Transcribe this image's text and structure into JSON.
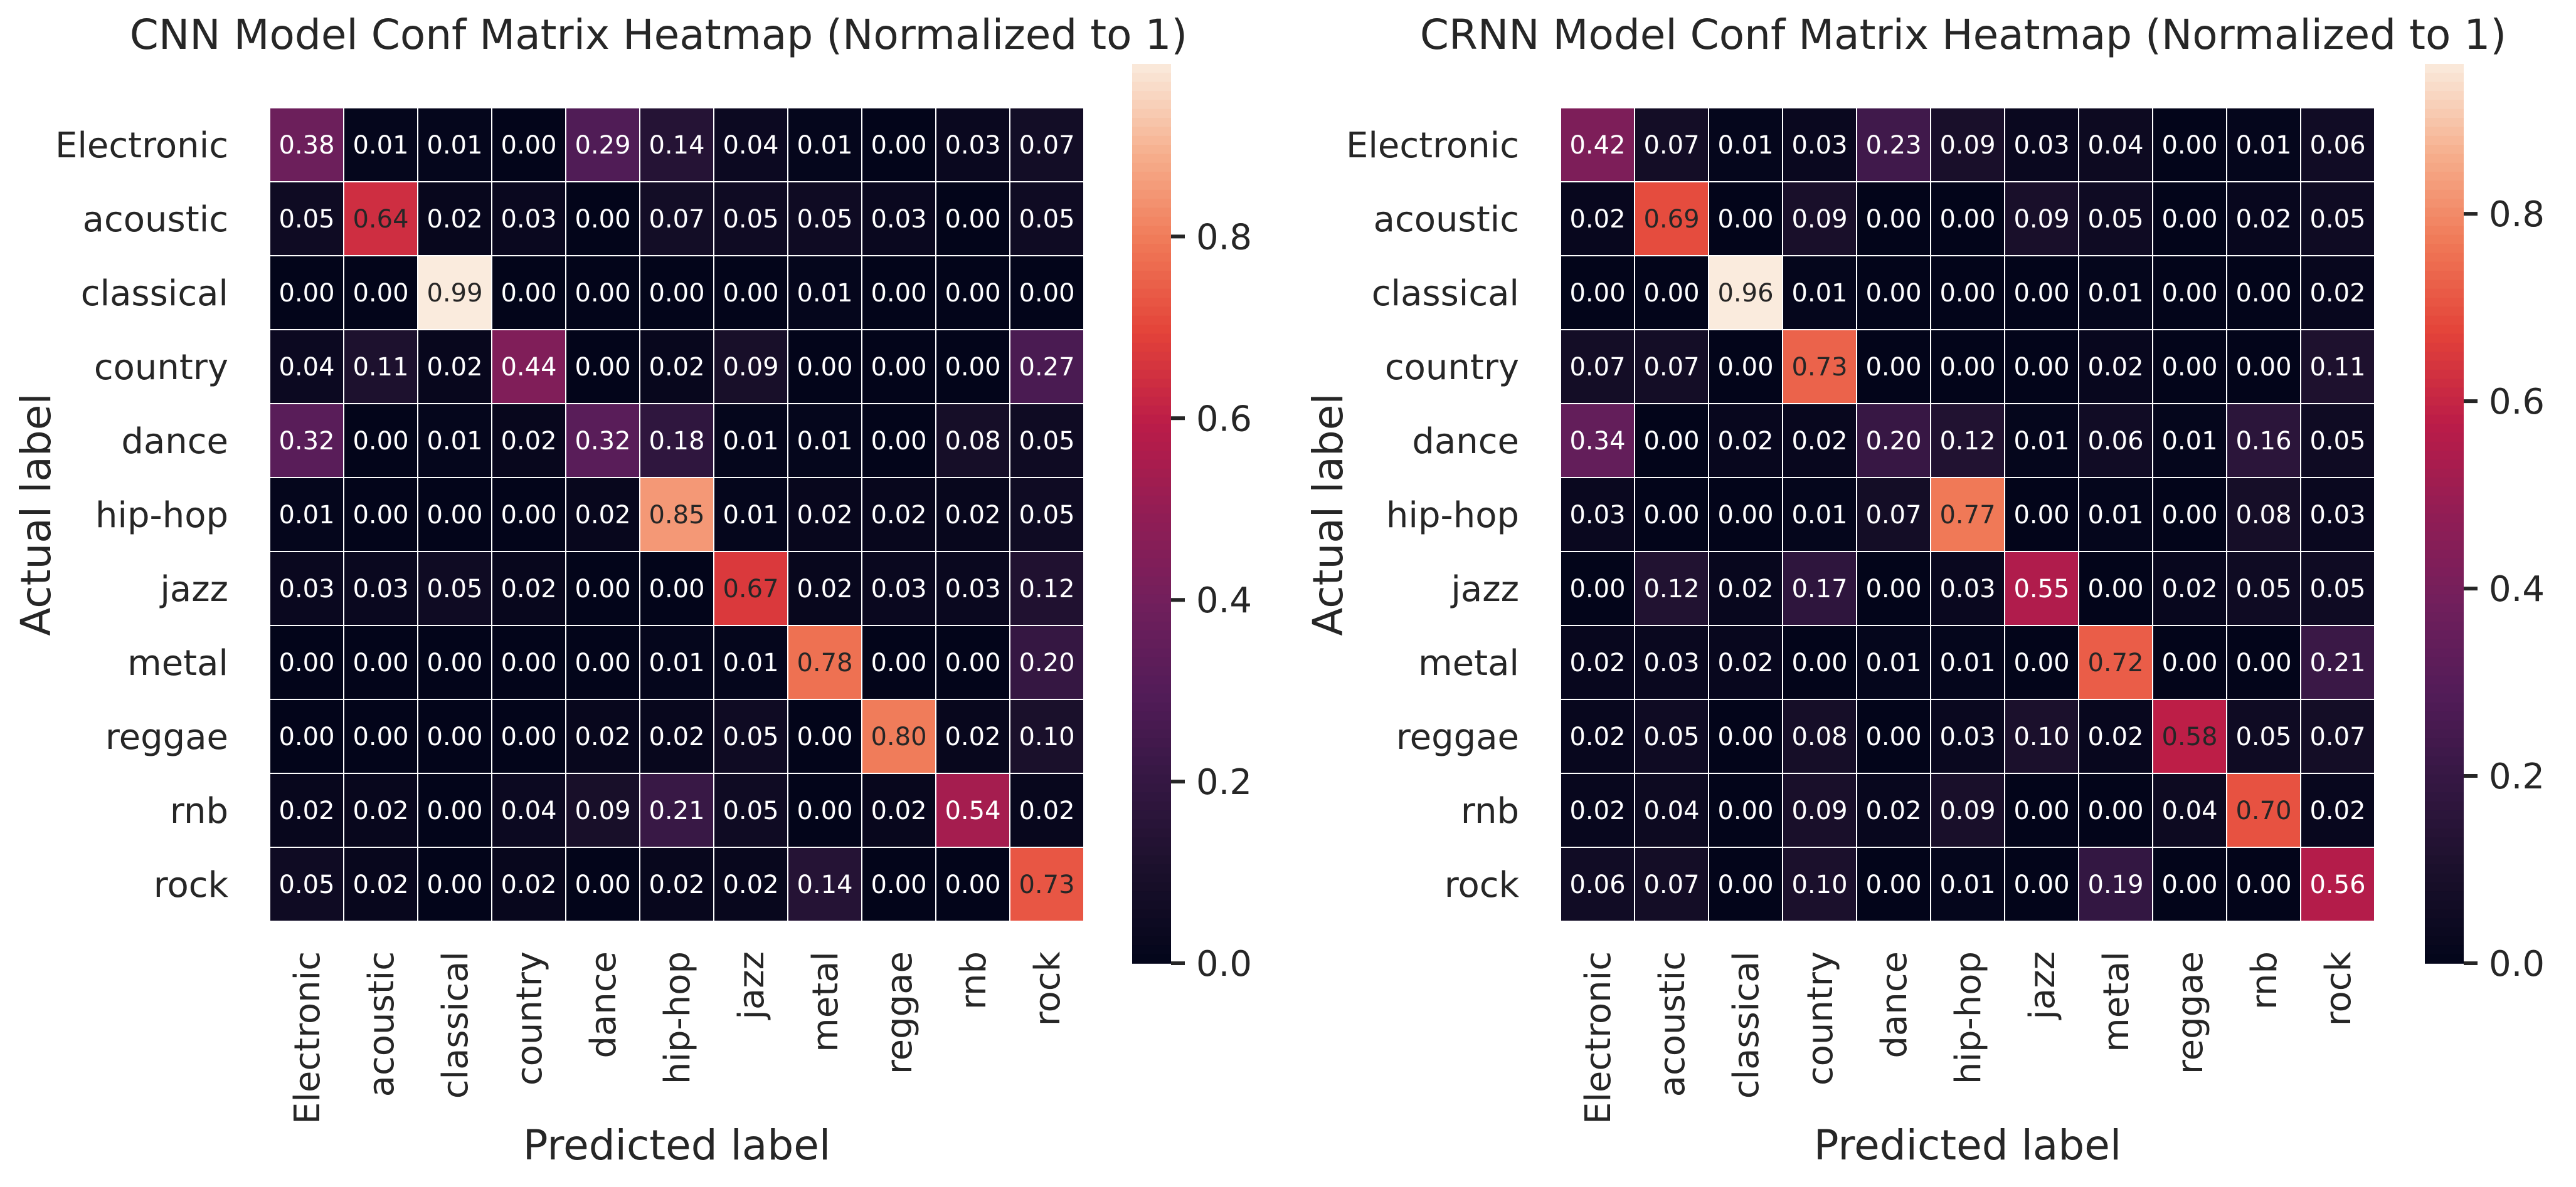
{
  "chart_data": [
    {
      "type": "heatmap",
      "title": "CNN Model Conf Matrix Heatmap (Normalized to 1)",
      "xlabel": "Predicted label",
      "ylabel": "Actual label",
      "x_categories": [
        "Electronic",
        "acoustic",
        "classical",
        "country",
        "dance",
        "hip-hop",
        "jazz",
        "metal",
        "reggae",
        "rnb",
        "rock"
      ],
      "y_categories": [
        "Electronic",
        "acoustic",
        "classical",
        "country",
        "dance",
        "hip-hop",
        "jazz",
        "metal",
        "reggae",
        "rnb",
        "rock"
      ],
      "values": [
        [
          0.38,
          0.01,
          0.01,
          0.0,
          0.29,
          0.14,
          0.04,
          0.01,
          0.0,
          0.03,
          0.07
        ],
        [
          0.05,
          0.64,
          0.02,
          0.03,
          0.0,
          0.07,
          0.05,
          0.05,
          0.03,
          0.0,
          0.05
        ],
        [
          0.0,
          0.0,
          0.99,
          0.0,
          0.0,
          0.0,
          0.0,
          0.01,
          0.0,
          0.0,
          0.0
        ],
        [
          0.04,
          0.11,
          0.02,
          0.44,
          0.0,
          0.02,
          0.09,
          0.0,
          0.0,
          0.0,
          0.27
        ],
        [
          0.32,
          0.0,
          0.01,
          0.02,
          0.32,
          0.18,
          0.01,
          0.01,
          0.0,
          0.08,
          0.05
        ],
        [
          0.01,
          0.0,
          0.0,
          0.0,
          0.02,
          0.85,
          0.01,
          0.02,
          0.02,
          0.02,
          0.05
        ],
        [
          0.03,
          0.03,
          0.05,
          0.02,
          0.0,
          0.0,
          0.67,
          0.02,
          0.03,
          0.03,
          0.12
        ],
        [
          0.0,
          0.0,
          0.0,
          0.0,
          0.0,
          0.01,
          0.01,
          0.78,
          0.0,
          0.0,
          0.2
        ],
        [
          0.0,
          0.0,
          0.0,
          0.0,
          0.02,
          0.02,
          0.05,
          0.0,
          0.8,
          0.02,
          0.1
        ],
        [
          0.02,
          0.02,
          0.0,
          0.04,
          0.09,
          0.21,
          0.05,
          0.0,
          0.02,
          0.54,
          0.02
        ],
        [
          0.05,
          0.02,
          0.0,
          0.02,
          0.0,
          0.02,
          0.02,
          0.14,
          0.0,
          0.0,
          0.73
        ]
      ],
      "colorbar": {
        "min": 0.0,
        "max": 0.99,
        "ticks": [
          "0.0",
          "0.2",
          "0.4",
          "0.6",
          "0.8"
        ]
      },
      "colormap": "rocket",
      "grid": true
    },
    {
      "type": "heatmap",
      "title": "CRNN Model Conf Matrix Heatmap (Normalized to 1)",
      "xlabel": "Predicted label",
      "ylabel": "Actual label",
      "x_categories": [
        "Electronic",
        "acoustic",
        "classical",
        "country",
        "dance",
        "hip-hop",
        "jazz",
        "metal",
        "reggae",
        "rnb",
        "rock"
      ],
      "y_categories": [
        "Electronic",
        "acoustic",
        "classical",
        "country",
        "dance",
        "hip-hop",
        "jazz",
        "metal",
        "reggae",
        "rnb",
        "rock"
      ],
      "values": [
        [
          0.42,
          0.07,
          0.01,
          0.03,
          0.23,
          0.09,
          0.03,
          0.04,
          0.0,
          0.01,
          0.06
        ],
        [
          0.02,
          0.69,
          0.0,
          0.09,
          0.0,
          0.0,
          0.09,
          0.05,
          0.0,
          0.02,
          0.05
        ],
        [
          0.0,
          0.0,
          0.96,
          0.01,
          0.0,
          0.0,
          0.0,
          0.01,
          0.0,
          0.0,
          0.02
        ],
        [
          0.07,
          0.07,
          0.0,
          0.73,
          0.0,
          0.0,
          0.0,
          0.02,
          0.0,
          0.0,
          0.11
        ],
        [
          0.34,
          0.0,
          0.02,
          0.02,
          0.2,
          0.12,
          0.01,
          0.06,
          0.01,
          0.16,
          0.05
        ],
        [
          0.03,
          0.0,
          0.0,
          0.01,
          0.07,
          0.77,
          0.0,
          0.01,
          0.0,
          0.08,
          0.03
        ],
        [
          0.0,
          0.12,
          0.02,
          0.17,
          0.0,
          0.03,
          0.55,
          0.0,
          0.02,
          0.05,
          0.05
        ],
        [
          0.02,
          0.03,
          0.02,
          0.0,
          0.01,
          0.01,
          0.0,
          0.72,
          0.0,
          0.0,
          0.21
        ],
        [
          0.02,
          0.05,
          0.0,
          0.08,
          0.0,
          0.03,
          0.1,
          0.02,
          0.58,
          0.05,
          0.07
        ],
        [
          0.02,
          0.04,
          0.0,
          0.09,
          0.02,
          0.09,
          0.0,
          0.0,
          0.04,
          0.7,
          0.02
        ],
        [
          0.06,
          0.07,
          0.0,
          0.1,
          0.0,
          0.01,
          0.0,
          0.19,
          0.0,
          0.0,
          0.56
        ]
      ],
      "colorbar": {
        "min": 0.0,
        "max": 0.96,
        "ticks": [
          "0.0",
          "0.2",
          "0.4",
          "0.6",
          "0.8"
        ]
      },
      "colormap": "rocket",
      "grid": true
    }
  ]
}
